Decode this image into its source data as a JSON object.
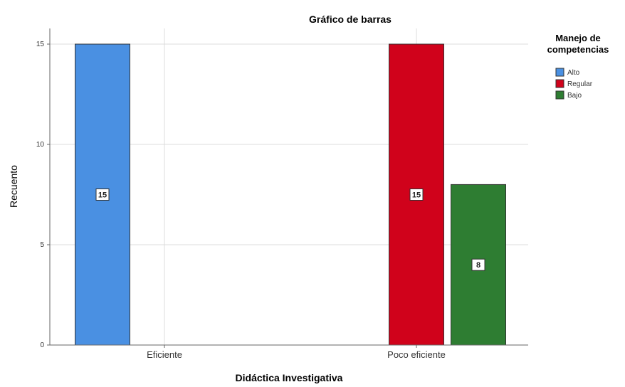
{
  "chart_data": {
    "type": "bar",
    "title": "Gráfico de barras",
    "xlabel": "Didáctica Investigativa",
    "ylabel": "Recuento",
    "categories": [
      "Eficiente",
      "Poco eficiente"
    ],
    "ylim": [
      0,
      16
    ],
    "yticks": [
      0,
      5,
      10,
      15
    ],
    "grid": true,
    "legend": {
      "title_line1": "Manejo de",
      "title_line2": "competencias",
      "placement": "top-right"
    },
    "series": [
      {
        "name": "Alto",
        "color": "#4a90e2",
        "values": [
          15,
          null
        ],
        "labels": [
          "15",
          ""
        ]
      },
      {
        "name": "Regular",
        "color": "#d0021b",
        "values": [
          null,
          15
        ],
        "labels": [
          "",
          "15"
        ]
      },
      {
        "name": "Bajo",
        "color": "#2e7d32",
        "values": [
          null,
          8
        ],
        "labels": [
          "",
          "8"
        ]
      }
    ]
  }
}
